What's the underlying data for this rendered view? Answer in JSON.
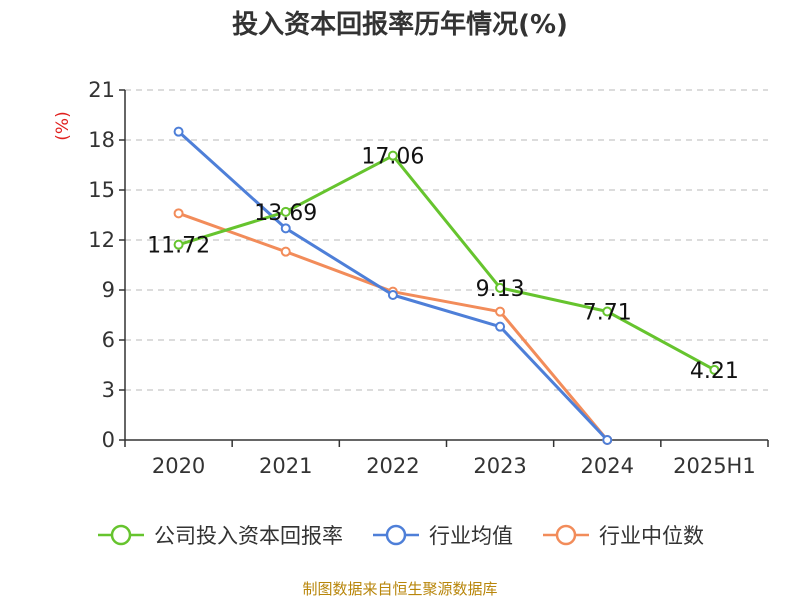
{
  "title": "投入资本回报率历年情况(%)",
  "unit_label": "(%)",
  "source": "制图数据来自恒生聚源数据库",
  "colors": {
    "company": "#66c42e",
    "industry_avg": "#4e7fd8",
    "industry_median": "#f28c5a",
    "axis": "#333333",
    "grid": "#c8c8c8",
    "unit": "#e0201e"
  },
  "chart_data": {
    "type": "line",
    "title": "投入资本回报率历年情况(%)",
    "categories": [
      "2020",
      "2021",
      "2022",
      "2023",
      "2024",
      "2025H1"
    ],
    "ylabel": "(%)",
    "ylim": [
      0,
      21
    ],
    "yticks": [
      "0",
      "3",
      "6",
      "9",
      "12",
      "15",
      "18",
      "21"
    ],
    "grid": true,
    "legend": "bottom",
    "series": [
      {
        "name": "公司投入资本回报率",
        "color": "#66c42e",
        "values": [
          11.72,
          13.69,
          17.06,
          9.13,
          7.71,
          4.21
        ],
        "labels": [
          "11.72",
          "13.69",
          "17.06",
          "9.13",
          "7.71",
          "4.21"
        ]
      },
      {
        "name": "行业均值",
        "color": "#4e7fd8",
        "values": [
          18.5,
          12.7,
          8.7,
          6.8,
          0.0,
          null
        ],
        "labels": null
      },
      {
        "name": "行业中位数",
        "color": "#f28c5a",
        "values": [
          13.6,
          11.3,
          8.9,
          7.7,
          0.0,
          null
        ],
        "labels": null
      }
    ]
  }
}
